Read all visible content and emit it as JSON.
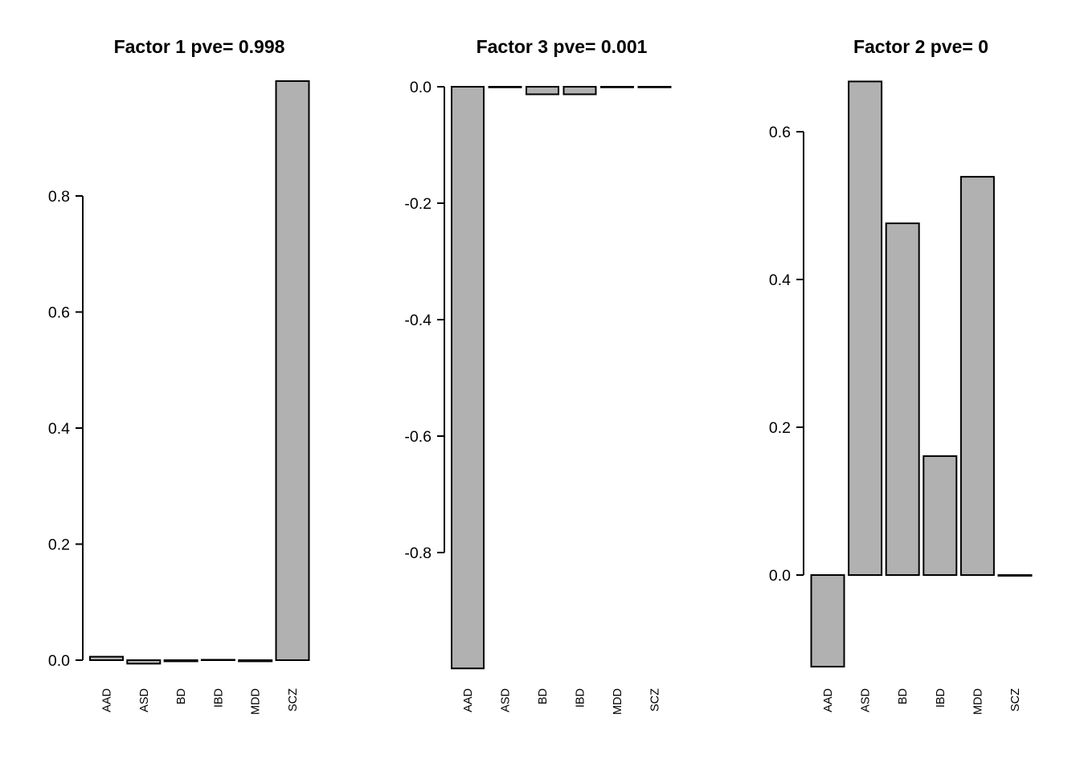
{
  "figure": {
    "background": "#ffffff",
    "bar_fill": "#b1b1b1",
    "bar_stroke": "#000000",
    "axis_color": "#000000",
    "text_color": "#000000"
  },
  "chart_data": [
    {
      "type": "bar",
      "title": "Factor 1 pve= 0.998",
      "factor": "Factor 1",
      "pve": "0.998",
      "categories": [
        "AAD",
        "ASD",
        "BD",
        "IBD",
        "MDD",
        "SCZ"
      ],
      "values": [
        0.006,
        -0.006,
        -0.002,
        0.0,
        -0.002,
        0.998
      ],
      "yticks": [
        0.0,
        0.2,
        0.4,
        0.6,
        0.8
      ],
      "ytick_labels": [
        "0.0",
        "0.2",
        "0.4",
        "0.6",
        "0.8"
      ],
      "ylim": [
        0.0,
        0.8
      ],
      "grid": false,
      "legend": false
    },
    {
      "type": "bar",
      "title": "Factor 3 pve= 0.001",
      "factor": "Factor 3",
      "pve": "0.001",
      "categories": [
        "AAD",
        "ASD",
        "BD",
        "IBD",
        "MDD",
        "SCZ"
      ],
      "values": [
        -0.999,
        -0.001,
        -0.013,
        -0.013,
        -0.001,
        -0.001
      ],
      "yticks": [
        0.0,
        -0.2,
        -0.4,
        -0.6,
        -0.8
      ],
      "ytick_labels": [
        "0.0",
        "-0.2",
        "-0.4",
        "-0.6",
        "-0.8"
      ],
      "ylim": [
        -0.8,
        0.0
      ],
      "grid": false,
      "legend": false
    },
    {
      "type": "bar",
      "title": "Factor 2 pve= 0",
      "factor": "Factor 2",
      "pve": "0",
      "categories": [
        "AAD",
        "ASD",
        "BD",
        "IBD",
        "MDD",
        "SCZ"
      ],
      "values": [
        -0.124,
        0.668,
        0.476,
        0.161,
        0.539,
        -0.001
      ],
      "yticks": [
        0.0,
        0.2,
        0.4,
        0.6
      ],
      "ytick_labels": [
        "0.0",
        "0.2",
        "0.4",
        "0.6"
      ],
      "ylim": [
        0.0,
        0.6
      ],
      "grid": false,
      "legend": false
    }
  ]
}
